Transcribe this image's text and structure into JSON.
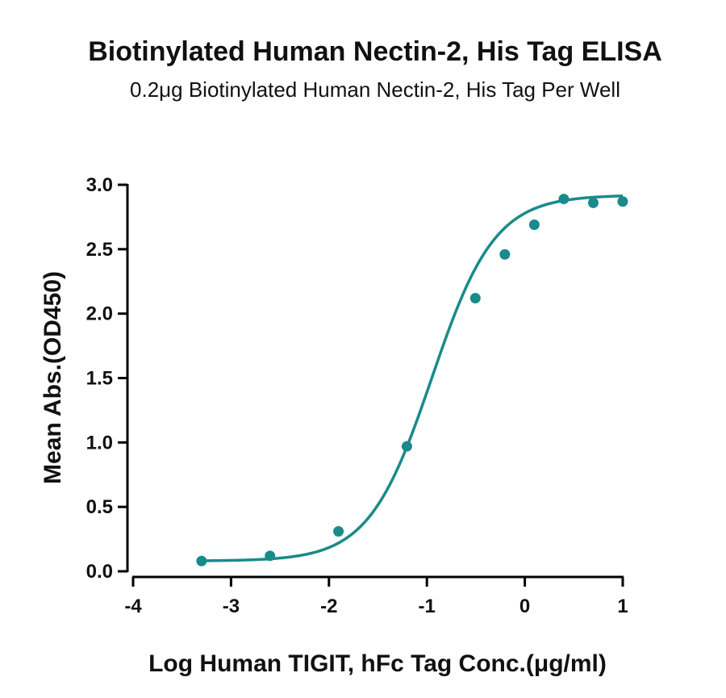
{
  "chart_data": {
    "type": "scatter",
    "title": "Biotinylated Human Nectin-2, His Tag ELISA",
    "subtitle": "0.2μg Biotinylated Human Nectin-2, His Tag Per Well",
    "xlabel": "Log Human TIGIT, hFc Tag Conc.(μg/ml)",
    "ylabel": "Mean Abs.(OD450)",
    "xlim": [
      -4,
      1
    ],
    "ylim": [
      0,
      3.0
    ],
    "x_ticks": [
      -4,
      -3,
      -2,
      -1,
      0,
      1
    ],
    "x_tick_labels": [
      "-4",
      "-3",
      "-2",
      "-1",
      "0",
      "1"
    ],
    "y_ticks": [
      0,
      0.5,
      1.0,
      1.5,
      2.0,
      2.5,
      3.0
    ],
    "y_tick_labels": [
      "0.0",
      "0.5",
      "1.0",
      "1.5",
      "2.0",
      "2.5",
      "3.0"
    ],
    "grid": false,
    "color": "#1a8a8a",
    "series": [
      {
        "x": [
          -3.301,
          -2.602,
          -1.903,
          -1.204,
          -0.505,
          -0.204,
          0.097,
          0.398,
          0.699,
          1.0
        ],
        "y": [
          0.08,
          0.12,
          0.31,
          0.97,
          2.12,
          2.46,
          2.69,
          2.89,
          2.86,
          2.87
        ],
        "fit": "4PL",
        "fit_params": {
          "bottom": 0.08,
          "top": 2.92,
          "log_ec50": -0.95,
          "hill": 1.35
        }
      }
    ]
  }
}
